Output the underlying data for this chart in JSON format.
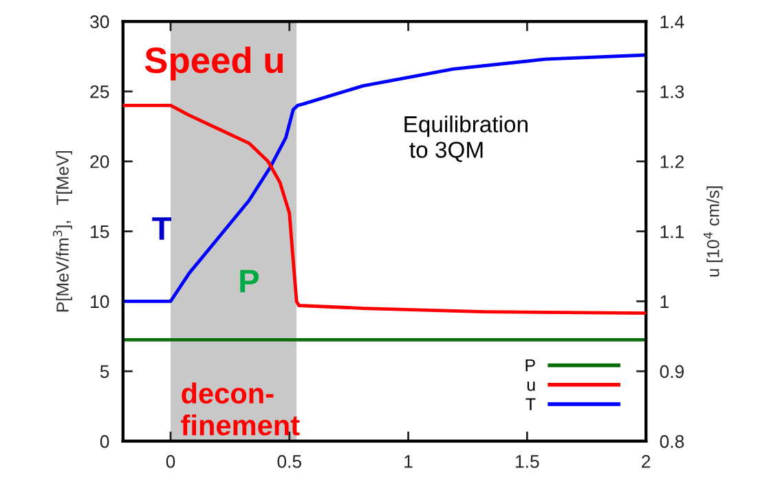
{
  "chart_data": {
    "type": "line",
    "xlabel": null,
    "ylabel": "P[MeV/fm$^{3}$],   T[MeV]",
    "y2label": "u [10$^{4}$ cm/s]",
    "xlim": [
      -0.2,
      2
    ],
    "xticks": [
      0,
      0.5,
      1,
      1.5,
      2
    ],
    "ylim": [
      0,
      30
    ],
    "yticks": [
      0,
      5,
      10,
      15,
      20,
      25,
      30
    ],
    "y2lim": [
      0.8,
      1.4
    ],
    "y2ticks": [
      0.8,
      0.9,
      1,
      1.1,
      1.2,
      1.3,
      1.4
    ],
    "grid": false,
    "legend": "bottom right",
    "line_style": "solid",
    "marker": "none",
    "bands": [
      {
        "axis": "x",
        "from": 0,
        "to": 0.53,
        "color": "#c8c8c8"
      }
    ],
    "annotations": [
      "Speed u",
      "T",
      "P",
      "Equilibration\n to 3QM",
      "decon-\nfinement"
    ],
    "series": [
      {
        "name": "P",
        "color": "#0a6e0a",
        "x": [
          -0.2,
          2
        ],
        "values": [
          7.25,
          7.25
        ]
      },
      {
        "name": "u",
        "color": "#ff0000",
        "axis": "y2",
        "x": [
          -0.2,
          0,
          0.078,
          0.204,
          0.33,
          0.41,
          0.46,
          0.5,
          0.515,
          0.53,
          0.54,
          0.81,
          1.32,
          2
        ],
        "values": [
          1.28,
          1.28,
          1.266,
          1.246,
          1.226,
          1.2,
          1.17,
          1.126,
          1.062,
          1.0,
          0.994,
          0.99,
          0.985,
          0.983
        ]
      },
      {
        "name": "T",
        "color": "#0000ff",
        "x": [
          -0.2,
          0,
          0.078,
          0.204,
          0.33,
          0.42,
          0.485,
          0.516,
          0.535,
          0.557,
          0.81,
          1.19,
          1.575,
          2
        ],
        "values": [
          10,
          10,
          12,
          14.6,
          17.2,
          19.6,
          21.7,
          23.7,
          24,
          24.1,
          25.4,
          26.6,
          27.3,
          27.6
        ]
      }
    ]
  }
}
